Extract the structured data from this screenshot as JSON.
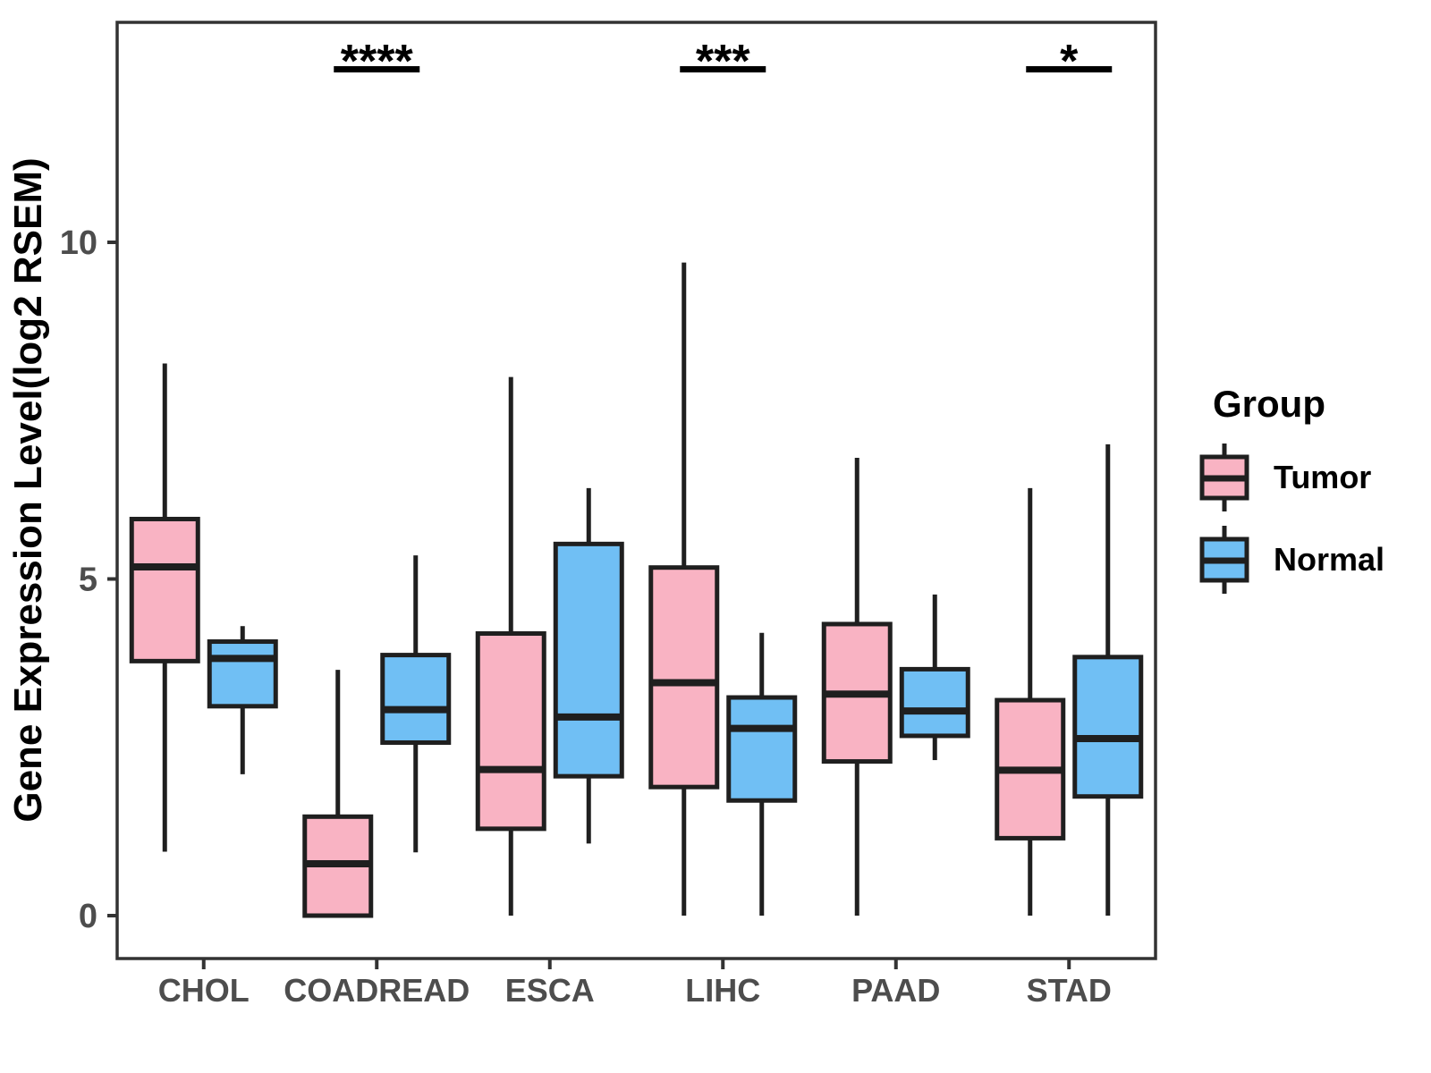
{
  "figure": {
    "background": "#FFFFFF"
  },
  "legend": {
    "title": "Group",
    "items": [
      {
        "label": "Tumor",
        "color": "#F9B3C3"
      },
      {
        "label": "Normal",
        "color": "#70BFF4"
      }
    ]
  },
  "chart_data": {
    "type": "grouped_boxplot",
    "title": "",
    "xlabel": "",
    "ylabel": "Gene Expression Level(log2 RSEM)",
    "categories": [
      "CHOL",
      "COADREAD",
      "ESCA",
      "LIHC",
      "PAAD",
      "STAD"
    ],
    "yticks": [
      0,
      5,
      10
    ],
    "ylim": [
      -0.7,
      13.3
    ],
    "grid": false,
    "legend_position": "right",
    "colors": {
      "tumor_fill": "#F9B3C3",
      "normal_fill": "#70BFF4",
      "line": "#1F1F1F",
      "panel_border": "#333333",
      "axis_text": "#4D4D4D"
    },
    "series": [
      {
        "name": "Tumor",
        "color": "#F9B3C3",
        "boxes": [
          {
            "category": "CHOL",
            "low": 0.95,
            "q1": 3.78,
            "median": 5.18,
            "q3": 5.89,
            "high": 8.2
          },
          {
            "category": "COADREAD",
            "low": 0.0,
            "q1": 0.0,
            "median": 0.77,
            "q3": 1.47,
            "high": 3.65
          },
          {
            "category": "ESCA",
            "low": 0.0,
            "q1": 1.29,
            "median": 2.17,
            "q3": 4.19,
            "high": 8.0
          },
          {
            "category": "LIHC",
            "low": 0.0,
            "q1": 1.91,
            "median": 3.46,
            "q3": 5.17,
            "high": 9.7
          },
          {
            "category": "PAAD",
            "low": 0.0,
            "q1": 2.29,
            "median": 3.29,
            "q3": 4.33,
            "high": 6.8
          },
          {
            "category": "STAD",
            "low": 0.0,
            "q1": 1.15,
            "median": 2.16,
            "q3": 3.2,
            "high": 6.35
          }
        ]
      },
      {
        "name": "Normal",
        "color": "#70BFF4",
        "boxes": [
          {
            "category": "CHOL",
            "low": 2.1,
            "q1": 3.11,
            "median": 3.82,
            "q3": 4.07,
            "high": 4.3
          },
          {
            "category": "COADREAD",
            "low": 0.94,
            "q1": 2.57,
            "median": 3.06,
            "q3": 3.87,
            "high": 5.35
          },
          {
            "category": "ESCA",
            "low": 1.07,
            "q1": 2.07,
            "median": 2.95,
            "q3": 5.52,
            "high": 6.35
          },
          {
            "category": "LIHC",
            "low": 0.0,
            "q1": 1.71,
            "median": 2.78,
            "q3": 3.24,
            "high": 4.2
          },
          {
            "category": "PAAD",
            "low": 2.31,
            "q1": 2.67,
            "median": 3.04,
            "q3": 3.66,
            "high": 4.77
          },
          {
            "category": "STAD",
            "low": 0.0,
            "q1": 1.77,
            "median": 2.63,
            "q3": 3.84,
            "high": 7.0
          }
        ]
      }
    ],
    "annotations": [
      {
        "category": "COADREAD",
        "label": "****"
      },
      {
        "category": "LIHC",
        "label": "***"
      },
      {
        "category": "STAD",
        "label": "*"
      }
    ]
  }
}
